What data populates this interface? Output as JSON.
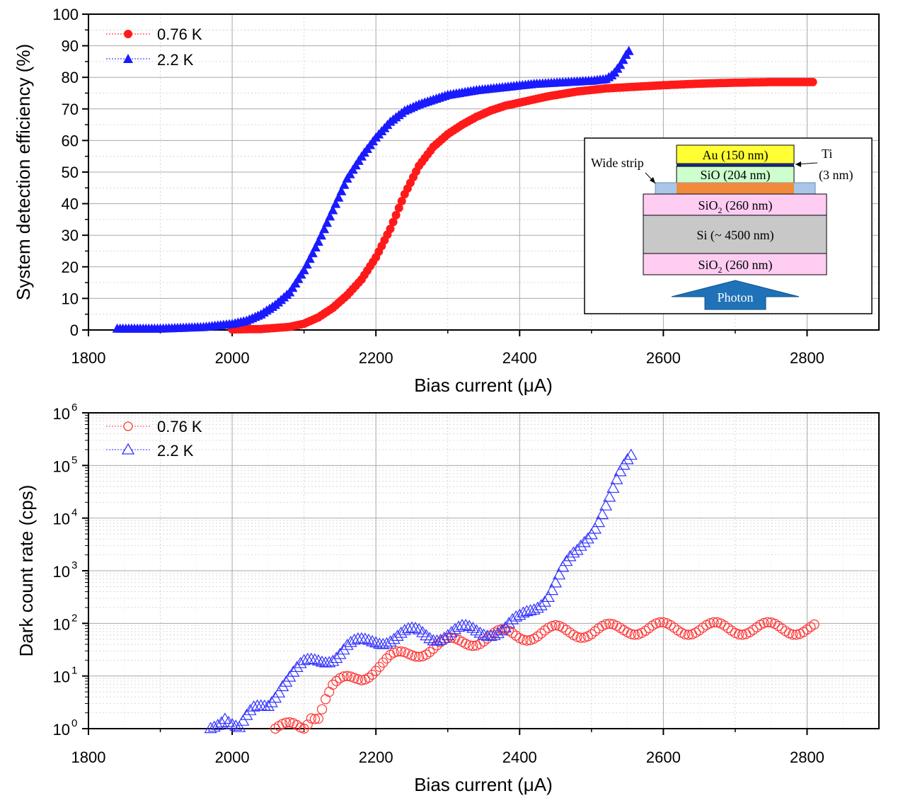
{
  "chart_data": [
    {
      "type": "scatter",
      "xlabel": "Bias current (μA)",
      "ylabel": "System detection efficiency (%)",
      "xlim": [
        1800,
        2900
      ],
      "ylim": [
        0,
        100
      ],
      "x_ticks": [
        "1800",
        "2000",
        "2200",
        "2400",
        "2600",
        "2800"
      ],
      "y_ticks": [
        "0",
        "10",
        "20",
        "30",
        "40",
        "50",
        "60",
        "70",
        "80",
        "90",
        "100"
      ],
      "grid": true,
      "legend_position": "top-left",
      "series": [
        {
          "name": "0.76 K",
          "color": "#ff1a1a",
          "marker": "filled-circle",
          "x": [
            2000,
            2040,
            2080,
            2100,
            2120,
            2140,
            2160,
            2180,
            2200,
            2220,
            2240,
            2260,
            2280,
            2300,
            2320,
            2340,
            2360,
            2380,
            2400,
            2440,
            2480,
            2520,
            2560,
            2600,
            2650,
            2700,
            2750,
            2810
          ],
          "y": [
            0.2,
            0.3,
            1,
            2,
            4,
            7,
            11,
            16,
            23,
            32,
            43,
            52,
            58,
            62,
            65,
            67.5,
            69.5,
            71,
            72,
            74,
            75.5,
            76.5,
            77,
            77.5,
            78,
            78.3,
            78.5,
            78.5
          ]
        },
        {
          "name": "2.2 K",
          "color": "#1a1aff",
          "marker": "filled-triangle",
          "x": [
            1840,
            1900,
            1960,
            2000,
            2020,
            2040,
            2060,
            2080,
            2100,
            2120,
            2140,
            2160,
            2180,
            2200,
            2220,
            2240,
            2260,
            2280,
            2300,
            2340,
            2380,
            2420,
            2460,
            2500,
            2520,
            2530,
            2540,
            2550,
            2555
          ],
          "y": [
            0.5,
            0.5,
            1,
            2,
            3,
            5,
            8,
            12,
            19,
            28,
            38,
            48,
            55,
            61,
            66,
            69.5,
            71.5,
            73,
            74.5,
            76,
            77,
            78,
            78.5,
            79,
            79.5,
            81,
            84,
            88,
            89
          ]
        }
      ],
      "inset": {
        "au": "Au (150 nm)",
        "ti": "Ti",
        "ti_thickness": "(3 nm)",
        "sio": "SiO (204 nm)",
        "wide_strip": "Wide strip",
        "sio2_prefix": "SiO",
        "sio2_sub": "2",
        "sio2_suffix": " (260 nm)",
        "si": "Si (~ 4500 nm)",
        "photon": "Photon"
      }
    },
    {
      "type": "scatter",
      "xlabel": "Bias current (μA)",
      "ylabel": "Dark count rate (cps)",
      "xlim": [
        1800,
        2900
      ],
      "ylim": [
        1,
        1000000
      ],
      "yscale": "log",
      "x_ticks": [
        "1800",
        "2000",
        "2200",
        "2400",
        "2600",
        "2800"
      ],
      "y_tick_exponents": [
        "0",
        "1",
        "2",
        "3",
        "4",
        "5",
        "6"
      ],
      "y_tick_base": "10",
      "grid": true,
      "legend_position": "top-left",
      "series": [
        {
          "name": "0.76 K",
          "color": "#ff3333",
          "marker": "open-circle",
          "x": [
            2060,
            2080,
            2100,
            2110,
            2120,
            2130,
            2140,
            2160,
            2180,
            2200,
            2220,
            2240,
            2260,
            2280,
            2300,
            2320,
            2340,
            2360,
            2380,
            2400,
            2450,
            2500,
            2550,
            2600,
            2650,
            2700,
            2750,
            2810
          ],
          "y": [
            1,
            1,
            1,
            2,
            2,
            4,
            6,
            8,
            10,
            15,
            20,
            25,
            30,
            35,
            40,
            45,
            50,
            55,
            60,
            60,
            70,
            70,
            80,
            80,
            80,
            80,
            80,
            80
          ]
        },
        {
          "name": "2.2 K",
          "color": "#3333ff",
          "marker": "open-triangle",
          "x": [
            1970,
            1990,
            2010,
            2030,
            2050,
            2060,
            2070,
            2080,
            2100,
            2120,
            2140,
            2160,
            2180,
            2200,
            2220,
            2240,
            2260,
            2280,
            2300,
            2320,
            2340,
            2360,
            2380,
            2400,
            2420,
            2440,
            2460,
            2480,
            2500,
            2520,
            2540,
            2555
          ],
          "y": [
            1,
            2,
            1,
            2,
            3,
            5,
            8,
            10,
            15,
            20,
            25,
            35,
            40,
            50,
            55,
            60,
            65,
            60,
            65,
            70,
            70,
            75,
            80,
            110,
            200,
            400,
            1000,
            2000,
            6000,
            20000,
            60000,
            130000
          ]
        }
      ]
    }
  ]
}
